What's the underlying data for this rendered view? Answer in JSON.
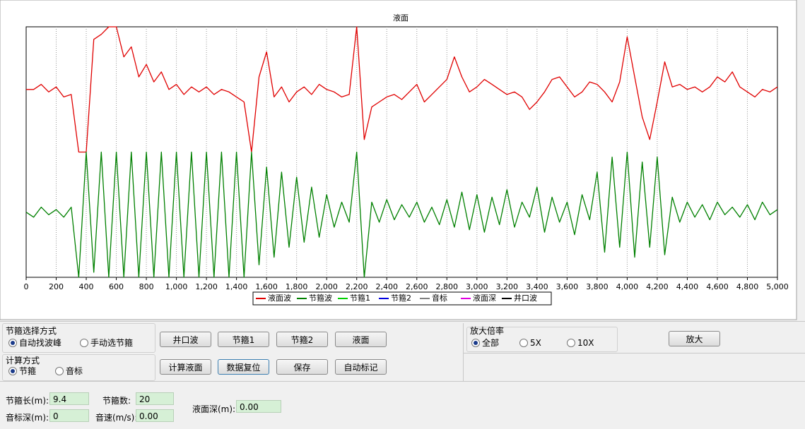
{
  "chart_data": {
    "type": "line",
    "title": "液面",
    "x": [
      0,
      50,
      100,
      150,
      200,
      250,
      300,
      350,
      400,
      450,
      500,
      550,
      600,
      650,
      700,
      750,
      800,
      850,
      900,
      950,
      1000,
      1050,
      1100,
      1150,
      1200,
      1250,
      1300,
      1350,
      1400,
      1450,
      1500,
      1550,
      1600,
      1650,
      1700,
      1750,
      1800,
      1850,
      1900,
      1950,
      2000,
      2050,
      2100,
      2150,
      2200,
      2250,
      2300,
      2350,
      2400,
      2450,
      2500,
      2550,
      2600,
      2650,
      2700,
      2750,
      2800,
      2850,
      2900,
      2950,
      3000,
      3050,
      3100,
      3150,
      3200,
      3250,
      3300,
      3350,
      3400,
      3450,
      3500,
      3550,
      3600,
      3650,
      3700,
      3750,
      3800,
      3850,
      3900,
      3950,
      4000,
      4050,
      4100,
      4150,
      4200,
      4250,
      4300,
      4350,
      4400,
      4450,
      4500,
      4550,
      4600,
      4650,
      4700,
      4750,
      4800,
      4850,
      4900,
      4950,
      5000
    ],
    "series": [
      {
        "name": "液面波",
        "color": "#e00000",
        "values": [
          75,
          75,
          77,
          74,
          76,
          72,
          73,
          50,
          50,
          95,
          97,
          100,
          100,
          88,
          92,
          80,
          85,
          78,
          82,
          75,
          77,
          73,
          76,
          74,
          76,
          73,
          75,
          74,
          72,
          70,
          50,
          80,
          90,
          72,
          76,
          70,
          74,
          76,
          73,
          77,
          75,
          74,
          72,
          73,
          100,
          55,
          68,
          70,
          72,
          73,
          71,
          74,
          77,
          70,
          73,
          76,
          79,
          88,
          80,
          74,
          76,
          79,
          77,
          75,
          73,
          74,
          72,
          67,
          70,
          74,
          79,
          80,
          76,
          72,
          74,
          78,
          77,
          74,
          70,
          78,
          96,
          80,
          64,
          55,
          70,
          86,
          76,
          77,
          75,
          76,
          74,
          76,
          80,
          78,
          82,
          76,
          74,
          72,
          75,
          74,
          76
        ]
      },
      {
        "name": "节箍波",
        "color": "#008000",
        "values": [
          26,
          24,
          28,
          25,
          27,
          24,
          28,
          0,
          50,
          2,
          50,
          0,
          50,
          0,
          50,
          0,
          50,
          0,
          50,
          0,
          50,
          0,
          50,
          0,
          50,
          0,
          50,
          0,
          50,
          0,
          50,
          5,
          44,
          8,
          42,
          12,
          40,
          14,
          36,
          16,
          33,
          20,
          30,
          22,
          50,
          0,
          30,
          22,
          31,
          23,
          29,
          24,
          30,
          22,
          28,
          21,
          31,
          20,
          34,
          19,
          33,
          18,
          32,
          21,
          35,
          20,
          30,
          24,
          36,
          18,
          32,
          22,
          30,
          17,
          33,
          23,
          42,
          10,
          48,
          12,
          50,
          8,
          46,
          12,
          48,
          9,
          32,
          22,
          30,
          24,
          29,
          23,
          30,
          25,
          28,
          24,
          29,
          23,
          30,
          25,
          27
        ]
      }
    ],
    "extra_legend": [
      {
        "name": "节箍1",
        "color": "#00d000"
      },
      {
        "name": "节箍2",
        "color": "#0000e0"
      },
      {
        "name": "音标",
        "color": "#808080"
      },
      {
        "name": "液面深",
        "color": "#e000e0"
      },
      {
        "name": "井口波",
        "color": "#000000"
      }
    ],
    "xlim": [
      0,
      5000
    ],
    "xticks": [
      0,
      200,
      400,
      600,
      800,
      {
        "value": 1000,
        "label": "1,000"
      },
      {
        "value": 1200,
        "label": "1,200"
      },
      {
        "value": 1400,
        "label": "1,400"
      },
      {
        "value": 1600,
        "label": "1,600"
      },
      {
        "value": 1800,
        "label": "1,800"
      },
      {
        "value": 2000,
        "label": "2,000"
      },
      {
        "value": 2200,
        "label": "2,200"
      },
      {
        "value": 2400,
        "label": "2,400"
      },
      {
        "value": 2600,
        "label": "2,600"
      },
      {
        "value": 2800,
        "label": "2,800"
      },
      {
        "value": 3000,
        "label": "3,000"
      },
      {
        "value": 3200,
        "label": "3,200"
      },
      {
        "value": 3400,
        "label": "3,400"
      },
      {
        "value": 3600,
        "label": "3,600"
      },
      {
        "value": 3800,
        "label": "3,800"
      },
      {
        "value": 4000,
        "label": "4,000"
      },
      {
        "value": 4200,
        "label": "4,200"
      },
      {
        "value": 4400,
        "label": "4,400"
      },
      {
        "value": 4600,
        "label": "4,600"
      },
      {
        "value": 4800,
        "label": "4,800"
      },
      {
        "value": 5000,
        "label": "5,000"
      }
    ],
    "ylim": [
      0,
      100
    ],
    "grid": true
  },
  "controls": {
    "select_group": {
      "title": "节箍选择方式",
      "options": [
        "自动找波峰",
        "手动选节箍"
      ],
      "selected": 0
    },
    "calc_group": {
      "title": "计算方式",
      "options": [
        "节箍",
        "音标"
      ],
      "selected": 0
    },
    "buttons_row1": [
      "井口波",
      "节箍1",
      "节箍2",
      "液面"
    ],
    "buttons_row2": [
      "计算液面",
      "数据复位",
      "保存",
      "自动标记"
    ],
    "zoom_group": {
      "title": "放大倍率",
      "options": [
        "全部",
        "5X",
        "10X"
      ],
      "selected": 0,
      "button": "放大"
    },
    "fields": [
      {
        "label": "节箍长(m):",
        "value": "9.4"
      },
      {
        "label": "节箍数:",
        "value": "20"
      },
      {
        "label": "音标深(m):",
        "value": "0"
      },
      {
        "label": "音速(m/s):",
        "value": "0.00"
      },
      {
        "label": "液面深(m):",
        "value": "0.00"
      }
    ]
  }
}
